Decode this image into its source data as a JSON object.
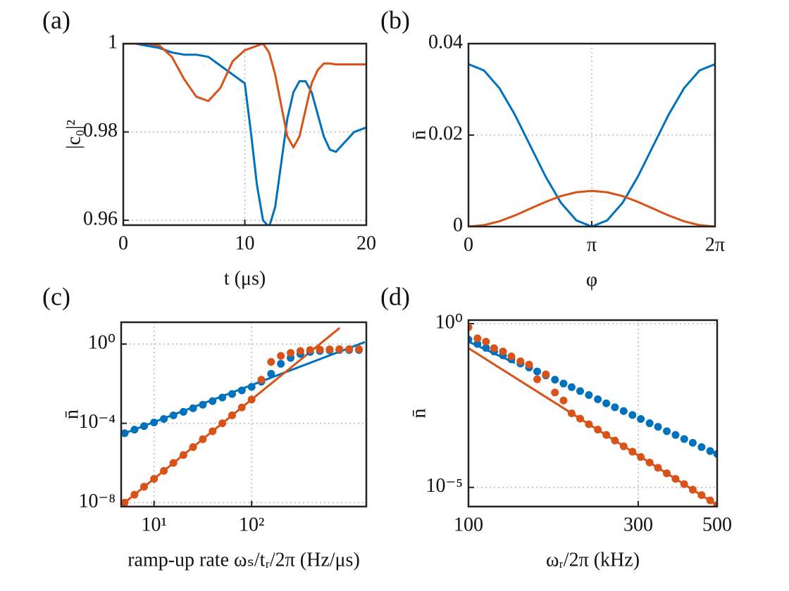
{
  "chart_data": [
    {
      "type": "line",
      "title": "(a)",
      "xlabel": "t (μs)",
      "ylabel": "|c₀|²",
      "xlim": [
        0,
        20
      ],
      "ylim": [
        0.9589,
        1
      ],
      "xticks": [
        0,
        10,
        20
      ],
      "yticks": [
        0.96,
        0.98,
        1
      ],
      "grid": true,
      "series": [
        {
          "color": "#0072bd",
          "style": "line",
          "x": [
            0,
            1,
            2,
            3,
            4,
            5,
            6,
            7,
            8,
            9,
            10,
            10.5,
            11,
            11.5,
            12,
            12.5,
            13,
            13.5,
            14,
            14.5,
            15,
            15.5,
            16,
            16.5,
            17,
            17.5,
            18,
            19,
            20
          ],
          "values": [
            1,
            1,
            0.9995,
            0.999,
            0.998,
            0.9975,
            0.9975,
            0.997,
            0.995,
            0.993,
            0.991,
            0.98,
            0.968,
            0.96,
            0.9585,
            0.963,
            0.973,
            0.983,
            0.989,
            0.9915,
            0.9915,
            0.989,
            0.984,
            0.979,
            0.976,
            0.9755,
            0.977,
            0.98,
            0.981
          ]
        },
        {
          "color": "#d95319",
          "style": "line",
          "x": [
            0,
            1,
            2,
            3,
            4,
            5,
            6,
            7,
            8,
            9,
            10,
            10.5,
            11,
            11.5,
            12,
            12.5,
            13,
            13.5,
            14,
            14.5,
            15,
            15.5,
            16,
            16.5,
            17,
            17.5,
            18,
            19,
            20
          ],
          "values": [
            1,
            1,
            1,
            0.9995,
            0.997,
            0.992,
            0.988,
            0.987,
            0.99,
            0.996,
            0.9985,
            0.999,
            0.9995,
            1,
            0.998,
            0.993,
            0.986,
            0.979,
            0.9765,
            0.979,
            0.985,
            0.991,
            0.994,
            0.9955,
            0.9955,
            0.9953,
            0.9953,
            0.9953,
            0.9953
          ]
        }
      ]
    },
    {
      "type": "line",
      "title": "(b)",
      "xlabel": "φ",
      "ylabel": "n̄",
      "xlim": [
        0,
        6.28319
      ],
      "ylim": [
        0,
        0.04
      ],
      "xticks": [
        0,
        {
          "value": 3.14159,
          "label": "π"
        },
        {
          "value": 6.28319,
          "label": "2π"
        }
      ],
      "yticks": [
        0,
        0.02,
        0.04
      ],
      "grid": true,
      "series": [
        {
          "color": "#0072bd",
          "style": "line",
          "x": [
            0,
            0.3927,
            0.7854,
            1.1781,
            1.5708,
            1.9635,
            2.3562,
            2.7489,
            3.1416,
            3.5343,
            3.927,
            4.3197,
            4.7124,
            5.1051,
            5.4978,
            5.8905,
            6.2832
          ],
          "values": [
            0.0355,
            0.03415,
            0.0303,
            0.02454,
            0.01775,
            0.01096,
            0.0052,
            0.00135,
            0,
            0.00135,
            0.0052,
            0.01096,
            0.01775,
            0.02454,
            0.0303,
            0.03415,
            0.0355
          ]
        },
        {
          "color": "#d95319",
          "style": "line",
          "x": [
            0,
            0.3927,
            0.7854,
            1.1781,
            1.5708,
            1.9635,
            2.3562,
            2.7489,
            3.1416,
            3.5343,
            3.927,
            4.3197,
            4.7124,
            5.1051,
            5.4978,
            5.8905,
            6.2832
          ],
          "values": [
            0,
            0.0003,
            0.00114,
            0.00241,
            0.0039,
            0.00539,
            0.00666,
            0.0075,
            0.0078,
            0.0075,
            0.00666,
            0.00539,
            0.0039,
            0.00241,
            0.00114,
            0.0003,
            0
          ]
        }
      ]
    },
    {
      "type": "line",
      "title": "(c)",
      "xlabel": "ramp-up rate ωₛ/tᵣ/2π (Hz/μs)",
      "ylabel": "n̄",
      "xscale": "log",
      "yscale": "log",
      "xlim": [
        4.6,
        1500
      ],
      "ylim": [
        6.3e-09,
        12.6
      ],
      "xticks": [
        {
          "value": 10,
          "label": "10¹"
        },
        {
          "value": 100,
          "label": "10²"
        }
      ],
      "yticks": [
        {
          "value": 1e-08,
          "label": "10⁻⁸"
        },
        {
          "value": 0.0001,
          "label": "10⁻⁴"
        },
        {
          "value": 1,
          "label": "10⁰"
        }
      ],
      "grid": true,
      "series": [
        {
          "color": "#0072bd",
          "style": "line",
          "x": [
            5,
            1450
          ],
          "values": [
            3.16e-05,
            1.26
          ]
        },
        {
          "color": "#d95319",
          "style": "line",
          "x": [
            5,
            800
          ],
          "values": [
            1e-08,
            6.5
          ]
        },
        {
          "color": "#0072bd",
          "style": "markers",
          "x": [
            5,
            6.3,
            7.9,
            10,
            12.6,
            15.8,
            20,
            25.1,
            31.6,
            39.8,
            50.1,
            63.1,
            79.4,
            100,
            125.9,
            158.5,
            199.5,
            251.2,
            316.2,
            398.1,
            501.2,
            631,
            794.3,
            1000,
            1258.9
          ],
          "values": [
            3.16e-05,
            4.79e-05,
            7.24e-05,
            0.00011,
            0.000166,
            0.000251,
            0.00038,
            0.000575,
            0.000871,
            0.00132,
            0.002,
            0.00302,
            0.00457,
            0.00692,
            0.0126,
            0.0316,
            0.1,
            0.2,
            0.316,
            0.398,
            0.447,
            0.479,
            0.501,
            0.501,
            0.501
          ]
        },
        {
          "color": "#d95319",
          "style": "markers",
          "x": [
            5,
            6.3,
            7.9,
            10,
            12.6,
            15.8,
            20,
            25.1,
            31.6,
            39.8,
            50.1,
            63.1,
            79.4,
            100,
            125.9,
            158.5,
            199.5,
            251.2,
            316.2,
            398.1,
            501.2,
            631,
            794.3,
            1000,
            1258.9
          ],
          "values": [
            1e-08,
            2.51e-08,
            6.31e-08,
            1.58e-07,
            3.98e-07,
            1e-06,
            2.51e-06,
            6.31e-06,
            1.58e-05,
            3.98e-05,
            0.0001,
            0.000251,
            0.000631,
            0.00158,
            0.0158,
            0.126,
            0.251,
            0.355,
            0.447,
            0.501,
            0.525,
            0.537,
            0.55,
            0.55,
            0.55
          ]
        }
      ]
    },
    {
      "type": "line",
      "title": "(d)",
      "xlabel": "ωᵣ/2π (kHz)",
      "ylabel": "n̄",
      "xscale": "log",
      "yscale": "log",
      "xlim": [
        100,
        500
      ],
      "ylim": [
        2.6e-06,
        1.28
      ],
      "xticks": [
        100,
        300,
        500
      ],
      "yticks": [
        {
          "value": 1e-05,
          "label": "10⁻⁵"
        },
        {
          "value": 1,
          "label": "10⁰"
        }
      ],
      "grid": true,
      "series": [
        {
          "color": "#0072bd",
          "style": "line",
          "x": [
            100,
            135
          ],
          "values": [
            0.282,
            0.063
          ]
        },
        {
          "color": "#d95319",
          "style": "line",
          "x": [
            100,
            500
          ],
          "values": [
            0.178,
            2.88e-06
          ]
        },
        {
          "color": "#0072bd",
          "style": "markers",
          "x": [
            100,
            106,
            112,
            118,
            125,
            132,
            140,
            148,
            156,
            165,
            175,
            185,
            195,
            206,
            218,
            231,
            244,
            258,
            273,
            289,
            305,
            323,
            341,
            361,
            382,
            404,
            427,
            452,
            478,
            500
          ],
          "values": [
            0.324,
            0.24,
            0.182,
            0.141,
            0.107,
            0.0813,
            0.0603,
            0.0457,
            0.0347,
            0.0263,
            0.0195,
            0.0148,
            0.0115,
            0.0087,
            0.0066,
            0.0049,
            0.0037,
            0.0028,
            0.00214,
            0.00162,
            0.00123,
            0.00091,
            0.00071,
            0.00052,
            0.0004,
            0.0003,
            0.00023,
            0.00017,
            0.000129,
            0.000105
          ]
        },
        {
          "color": "#d95319",
          "style": "markers",
          "x": [
            100,
            106,
            112,
            118,
            125,
            132,
            140,
            148,
            156,
            165,
            175,
            185,
            195,
            206,
            218,
            231,
            244,
            258,
            273,
            289,
            305,
            323,
            341,
            361,
            382,
            404,
            427,
            452,
            478,
            500
          ],
          "values": [
            0.776,
            0.355,
            0.282,
            0.178,
            0.141,
            0.1,
            0.0708,
            0.0562,
            0.02,
            0.0282,
            0.0079,
            0.0045,
            0.00182,
            0.00126,
            0.00085,
            0.00058,
            0.0004,
            0.00027,
            0.00018,
            0.000123,
            8.51e-05,
            5.75e-05,
            3.98e-05,
            2.69e-05,
            1.82e-05,
            1.26e-05,
            8.5e-06,
            5.8e-06,
            4e-06,
            2.9e-06
          ]
        }
      ]
    }
  ]
}
